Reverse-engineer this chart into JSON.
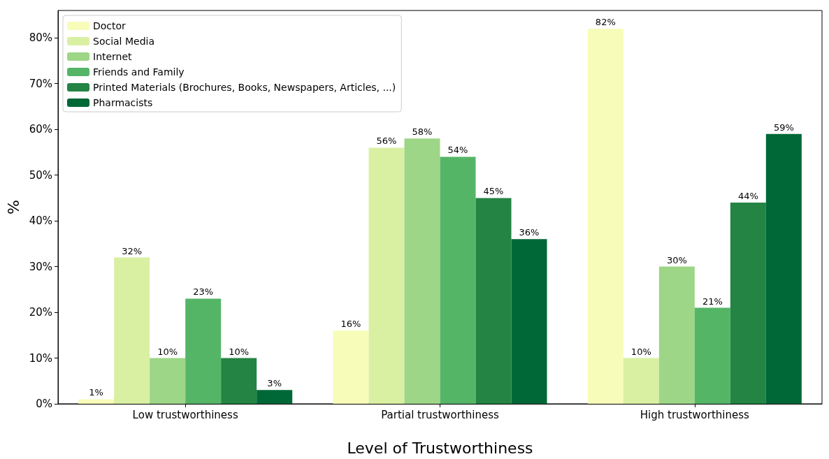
{
  "chart_data": {
    "type": "bar",
    "xlabel": "Level of Trustworthiness",
    "ylabel": "%",
    "categories": [
      "Low trustworthiness",
      "Partial trustworthiness",
      "High trustworthiness"
    ],
    "series": [
      {
        "name": "Doctor",
        "color": "#f7fcb9",
        "values": [
          1,
          16,
          82
        ],
        "value_labels": [
          "1%",
          "16%",
          "82%"
        ]
      },
      {
        "name": "Social Media",
        "color": "#d9f0a3",
        "values": [
          32,
          56,
          10
        ],
        "value_labels": [
          "32%",
          "56%",
          "10%"
        ]
      },
      {
        "name": "Internet",
        "color": "#9dd686",
        "values": [
          10,
          58,
          30
        ],
        "value_labels": [
          "10%",
          "58%",
          "30%"
        ]
      },
      {
        "name": "Friends and Family",
        "color": "#55b567",
        "values": [
          23,
          54,
          21
        ],
        "value_labels": [
          "23%",
          "54%",
          "21%"
        ]
      },
      {
        "name": "Printed Materials (Brochures, Books, Newspapers, Articles, ...)",
        "color": "#238443",
        "values": [
          10,
          45,
          44
        ],
        "value_labels": [
          "10%",
          "45%",
          "44%"
        ]
      },
      {
        "name": "Pharmacists",
        "color": "#006837",
        "values": [
          3,
          36,
          59
        ],
        "value_labels": [
          "3%",
          "36%",
          "59%"
        ]
      }
    ],
    "ylim": [
      0,
      86
    ],
    "yticks": [
      {
        "value": 0,
        "label": "0%"
      },
      {
        "value": 10,
        "label": "10%"
      },
      {
        "value": 20,
        "label": "20%"
      },
      {
        "value": 30,
        "label": "30%"
      },
      {
        "value": 40,
        "label": "40%"
      },
      {
        "value": 50,
        "label": "50%"
      },
      {
        "value": 60,
        "label": "60%"
      },
      {
        "value": 70,
        "label": "70%"
      },
      {
        "value": 80,
        "label": "80%"
      }
    ],
    "grid": false,
    "legend": "top left"
  }
}
